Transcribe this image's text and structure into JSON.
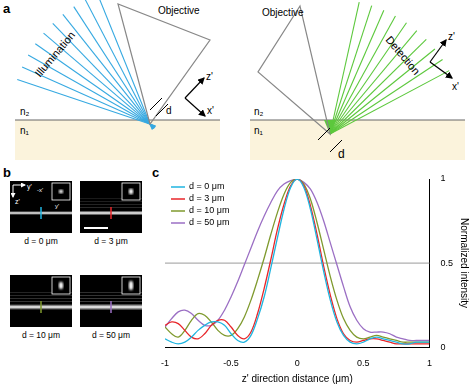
{
  "figure_a": {
    "label": "a",
    "left": {
      "illumination": "Illumination",
      "objective": "Objective",
      "z": "z'",
      "x": "x'",
      "d": "d",
      "n_top": "n₂",
      "n_bottom": "n₁",
      "color": "#36a9e1"
    },
    "right": {
      "objective": "Objective",
      "detection": "Detection",
      "z": "z'",
      "x": "x'",
      "d": "d",
      "n_top": "n₂",
      "n_bottom": "n₁",
      "color": "#5cc83c"
    }
  },
  "figure_b": {
    "label": "b",
    "axes": {
      "horizontal": "y'",
      "vertical": "z'"
    },
    "inset_axes": {
      "horizontal": "-x'",
      "vertical": "y'"
    },
    "tiles": [
      {
        "label": "d = 0 μm",
        "color": "#1fb5e0"
      },
      {
        "label": "d = 3 μm",
        "color": "#e8262a"
      },
      {
        "label": "d = 10 μm",
        "color": "#7f9a2e"
      },
      {
        "label": "d = 50 μm",
        "color": "#9b6fc4"
      }
    ]
  },
  "chart_panel_label": "c",
  "chart_data": {
    "type": "line",
    "x_label": "z' direction distance (μm)",
    "y_label": "Normalized intensity",
    "x": [
      -1,
      -0.95,
      -0.9,
      -0.85,
      -0.8,
      -0.75,
      -0.7,
      -0.65,
      -0.6,
      -0.55,
      -0.5,
      -0.45,
      -0.4,
      -0.35,
      -0.3,
      -0.25,
      -0.2,
      -0.15,
      -0.1,
      -0.05,
      0,
      0.05,
      0.1,
      0.15,
      0.2,
      0.25,
      0.3,
      0.35,
      0.4,
      0.45,
      0.5,
      0.55,
      0.6,
      0.65,
      0.7,
      0.75,
      0.8,
      0.85,
      0.9,
      0.95,
      1
    ],
    "series": [
      {
        "name": "d = 0 μm",
        "color": "#1fb5e0",
        "values": [
          0.05,
          0.03,
          0.02,
          0.03,
          0.06,
          0.1,
          0.13,
          0.15,
          0.15,
          0.13,
          0.08,
          0.04,
          0.03,
          0.07,
          0.17,
          0.3,
          0.47,
          0.65,
          0.82,
          0.95,
          1,
          0.95,
          0.82,
          0.64,
          0.45,
          0.28,
          0.15,
          0.07,
          0.03,
          0.02,
          0.03,
          0.05,
          0.06,
          0.05,
          0.04,
          0.03,
          0.02,
          0.02,
          0.03,
          0.03,
          0.03
        ]
      },
      {
        "name": "d = 3 μm",
        "color": "#e8262a",
        "values": [
          0.13,
          0.15,
          0.14,
          0.1,
          0.06,
          0.05,
          0.08,
          0.13,
          0.16,
          0.16,
          0.12,
          0.07,
          0.05,
          0.09,
          0.2,
          0.35,
          0.52,
          0.7,
          0.85,
          0.96,
          1,
          0.96,
          0.84,
          0.67,
          0.48,
          0.31,
          0.17,
          0.08,
          0.04,
          0.03,
          0.04,
          0.05,
          0.05,
          0.04,
          0.03,
          0.02,
          0.02,
          0.02,
          0.02,
          0.02,
          0.02
        ]
      },
      {
        "name": "d = 10 μm",
        "color": "#7f9a2e",
        "values": [
          0.12,
          0.08,
          0.06,
          0.1,
          0.16,
          0.2,
          0.19,
          0.15,
          0.1,
          0.07,
          0.07,
          0.11,
          0.18,
          0.28,
          0.4,
          0.53,
          0.67,
          0.8,
          0.91,
          0.98,
          1,
          0.97,
          0.88,
          0.74,
          0.58,
          0.42,
          0.28,
          0.17,
          0.1,
          0.06,
          0.05,
          0.06,
          0.07,
          0.06,
          0.05,
          0.04,
          0.03,
          0.03,
          0.03,
          0.03,
          0.03
        ]
      },
      {
        "name": "d = 50 μm",
        "color": "#9b6fc4",
        "values": [
          0.12,
          0.17,
          0.21,
          0.22,
          0.2,
          0.16,
          0.13,
          0.13,
          0.16,
          0.22,
          0.3,
          0.39,
          0.49,
          0.59,
          0.69,
          0.78,
          0.86,
          0.93,
          0.97,
          0.99,
          1,
          0.98,
          0.94,
          0.86,
          0.75,
          0.62,
          0.49,
          0.36,
          0.24,
          0.16,
          0.11,
          0.09,
          0.09,
          0.09,
          0.08,
          0.06,
          0.05,
          0.04,
          0.04,
          0.04,
          0.04
        ]
      }
    ],
    "xlim": [
      -1,
      1
    ],
    "xticks": [
      -1,
      -0.5,
      0,
      0.5,
      1
    ],
    "ylim": [
      0,
      1
    ],
    "yticks": [
      0,
      0.5,
      1
    ],
    "reference_line": {
      "y": 0.5
    },
    "grid": false,
    "legend": "upper left"
  }
}
